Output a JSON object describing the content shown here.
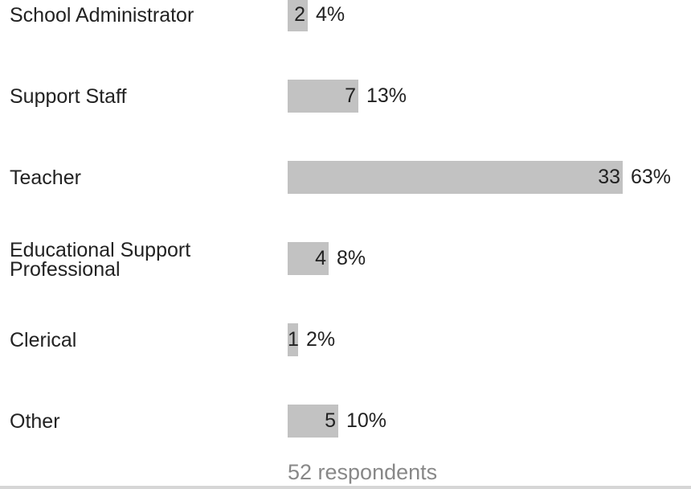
{
  "chart_data": {
    "type": "bar",
    "orientation": "horizontal",
    "categories": [
      "School Administrator",
      "Support Staff",
      "Teacher",
      "Educational Support\nProfessional",
      "Clerical",
      "Other"
    ],
    "values": [
      2,
      7,
      33,
      4,
      1,
      5
    ],
    "percentages": [
      "4%",
      "13%",
      "63%",
      "8%",
      "2%",
      "10%"
    ],
    "bar_color": "#c2c2c2",
    "xlim": [
      0,
      33
    ],
    "grid": false,
    "legend": "none",
    "total_label": "52 respondents"
  }
}
